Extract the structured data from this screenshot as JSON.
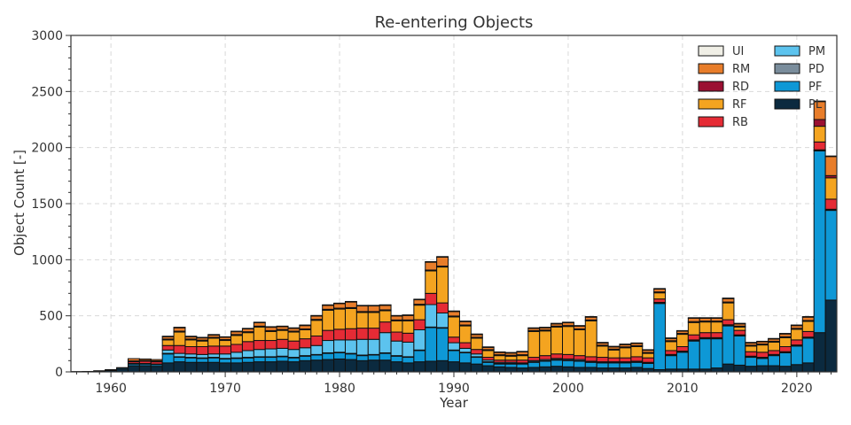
{
  "chart_data": {
    "type": "bar",
    "stacked": true,
    "title": "Re-entering Objects",
    "xlabel": "Year",
    "ylabel": "Object Count [-]",
    "xlim": [
      1956.5,
      2023.5
    ],
    "ylim": [
      0,
      3000
    ],
    "xticks": [
      1960,
      1970,
      1980,
      1990,
      2000,
      2010,
      2020
    ],
    "yticks": [
      0,
      500,
      1000,
      1500,
      2000,
      2500,
      3000
    ],
    "grid": true,
    "legend_position": "top-right",
    "colors": {
      "PL": "#0b2a3f",
      "PF": "#0e98d6",
      "PD": "#7a8d9c",
      "PM": "#5cc3ee",
      "RB": "#e52b35",
      "RF": "#f4a420",
      "RD": "#9b1032",
      "RM": "#e87d2a",
      "UI": "#f0efe6"
    },
    "legend_order": [
      "UI",
      "RM",
      "RD",
      "RF",
      "RB",
      "PM",
      "PD",
      "PF",
      "PL"
    ],
    "stack_order": [
      "PL",
      "PF",
      "PD",
      "PM",
      "RB",
      "RF",
      "RD",
      "RM",
      "UI"
    ],
    "years": [
      1957,
      1958,
      1959,
      1960,
      1961,
      1962,
      1963,
      1964,
      1965,
      1966,
      1967,
      1968,
      1969,
      1970,
      1971,
      1972,
      1973,
      1974,
      1975,
      1976,
      1977,
      1978,
      1979,
      1980,
      1981,
      1982,
      1983,
      1984,
      1985,
      1986,
      1987,
      1988,
      1989,
      1990,
      1991,
      1992,
      1993,
      1994,
      1995,
      1996,
      1997,
      1998,
      1999,
      2000,
      2001,
      2002,
      2003,
      2004,
      2005,
      2006,
      2007,
      2008,
      2009,
      2010,
      2011,
      2012,
      2013,
      2014,
      2015,
      2016,
      2017,
      2018,
      2019,
      2020,
      2021,
      2022,
      2023
    ],
    "series": [
      {
        "name": "PL",
        "values": [
          3,
          4,
          6,
          12,
          25,
          55,
          55,
          50,
          80,
          90,
          85,
          85,
          85,
          80,
          80,
          85,
          90,
          90,
          95,
          90,
          100,
          105,
          110,
          115,
          110,
          100,
          105,
          105,
          90,
          80,
          90,
          95,
          100,
          90,
          80,
          70,
          55,
          45,
          40,
          35,
          40,
          45,
          50,
          45,
          40,
          40,
          35,
          35,
          35,
          40,
          30,
          20,
          25,
          25,
          25,
          25,
          35,
          70,
          60,
          50,
          55,
          55,
          50,
          65,
          80,
          350,
          640
        ]
      },
      {
        "name": "PF",
        "values": [
          0,
          0,
          2,
          5,
          10,
          15,
          15,
          15,
          80,
          40,
          40,
          35,
          40,
          35,
          40,
          40,
          40,
          40,
          40,
          35,
          40,
          45,
          55,
          55,
          50,
          45,
          45,
          60,
          50,
          50,
          100,
          300,
          290,
          100,
          90,
          60,
          30,
          25,
          30,
          35,
          45,
          50,
          55,
          55,
          55,
          45,
          45,
          45,
          45,
          45,
          45,
          590,
          120,
          150,
          250,
          270,
          260,
          340,
          260,
          80,
          65,
          90,
          120,
          165,
          220,
          1620,
          800
        ]
      },
      {
        "name": "PD",
        "values": [
          0,
          0,
          0,
          0,
          0,
          0,
          0,
          0,
          5,
          5,
          5,
          5,
          5,
          5,
          5,
          5,
          5,
          5,
          5,
          5,
          5,
          5,
          5,
          5,
          5,
          5,
          5,
          5,
          5,
          5,
          5,
          5,
          5,
          5,
          5,
          5,
          5,
          5,
          5,
          5,
          5,
          5,
          5,
          5,
          5,
          5,
          5,
          5,
          5,
          5,
          5,
          5,
          5,
          5,
          5,
          5,
          5,
          5,
          5,
          5,
          5,
          5,
          5,
          5,
          5,
          5,
          5
        ]
      },
      {
        "name": "PM",
        "values": [
          0,
          0,
          0,
          0,
          0,
          5,
          5,
          5,
          30,
          30,
          30,
          30,
          30,
          40,
          50,
          60,
          65,
          70,
          70,
          70,
          70,
          80,
          110,
          110,
          120,
          140,
          135,
          180,
          130,
          130,
          180,
          200,
          130,
          65,
          35,
          25,
          15,
          10,
          10,
          5,
          10,
          10,
          10,
          10,
          10,
          5,
          5,
          5,
          5,
          5,
          5,
          5,
          5,
          5,
          5,
          5,
          5,
          5,
          5,
          5,
          5,
          5,
          5,
          5,
          5,
          5,
          5
        ]
      },
      {
        "name": "RB",
        "values": [
          0,
          0,
          2,
          3,
          3,
          15,
          20,
          20,
          40,
          70,
          65,
          70,
          70,
          70,
          70,
          80,
          80,
          75,
          80,
          75,
          80,
          85,
          90,
          95,
          100,
          100,
          100,
          95,
          80,
          80,
          90,
          100,
          90,
          50,
          50,
          40,
          25,
          20,
          20,
          25,
          30,
          35,
          40,
          40,
          35,
          40,
          40,
          35,
          35,
          40,
          40,
          30,
          35,
          40,
          45,
          45,
          45,
          45,
          40,
          40,
          45,
          35,
          45,
          45,
          50,
          70,
          90
        ]
      },
      {
        "name": "RF",
        "values": [
          0,
          0,
          0,
          0,
          0,
          5,
          5,
          5,
          50,
          120,
          60,
          50,
          70,
          50,
          80,
          80,
          120,
          80,
          80,
          80,
          80,
          140,
          180,
          180,
          180,
          140,
          140,
          100,
          100,
          110,
          130,
          200,
          320,
          180,
          150,
          100,
          60,
          40,
          35,
          40,
          230,
          220,
          240,
          250,
          230,
          320,
          100,
          70,
          90,
          90,
          40,
          55,
          80,
          110,
          110,
          95,
          95,
          150,
          30,
          50,
          65,
          75,
          80,
          95,
          90,
          140,
          190
        ]
      },
      {
        "name": "RD",
        "values": [
          0,
          0,
          0,
          0,
          0,
          3,
          3,
          3,
          8,
          8,
          8,
          8,
          8,
          8,
          8,
          8,
          8,
          8,
          8,
          8,
          8,
          8,
          8,
          8,
          8,
          8,
          8,
          8,
          8,
          8,
          8,
          8,
          8,
          8,
          8,
          8,
          8,
          8,
          8,
          8,
          8,
          8,
          8,
          8,
          8,
          8,
          8,
          8,
          8,
          8,
          8,
          8,
          8,
          8,
          8,
          8,
          8,
          8,
          8,
          8,
          8,
          8,
          8,
          8,
          8,
          60,
          20
        ]
      },
      {
        "name": "RM",
        "values": [
          0,
          0,
          0,
          0,
          0,
          20,
          12,
          12,
          20,
          30,
          20,
          20,
          20,
          20,
          25,
          25,
          30,
          30,
          25,
          25,
          30,
          30,
          35,
          40,
          50,
          50,
          50,
          40,
          35,
          40,
          40,
          70,
          80,
          40,
          30,
          25,
          20,
          20,
          20,
          25,
          20,
          20,
          20,
          25,
          25,
          25,
          20,
          20,
          20,
          20,
          20,
          25,
          20,
          20,
          30,
          25,
          25,
          30,
          20,
          20,
          20,
          20,
          25,
          25,
          30,
          160,
          170
        ]
      },
      {
        "name": "UI",
        "values": [
          0,
          0,
          0,
          0,
          0,
          0,
          0,
          0,
          5,
          5,
          5,
          5,
          5,
          5,
          5,
          5,
          5,
          5,
          5,
          5,
          5,
          5,
          5,
          5,
          5,
          5,
          5,
          5,
          5,
          5,
          5,
          5,
          5,
          5,
          5,
          5,
          5,
          5,
          5,
          5,
          5,
          5,
          5,
          5,
          5,
          5,
          5,
          5,
          5,
          5,
          5,
          5,
          5,
          5,
          5,
          5,
          5,
          5,
          5,
          5,
          5,
          5,
          5,
          5,
          5,
          5,
          5
        ]
      }
    ]
  }
}
